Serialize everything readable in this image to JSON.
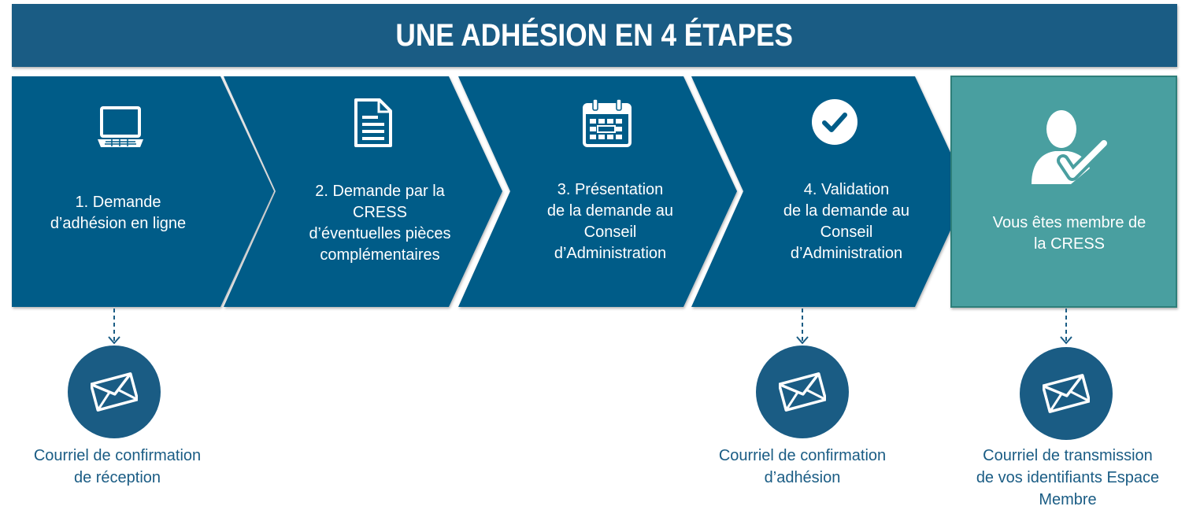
{
  "title": "UNE ADHÉSION EN 4 ÉTAPES",
  "colors": {
    "step_fill": "#005c88",
    "member_fill": "#4a9fa0",
    "text_dark": "#1a5c84",
    "white": "#ffffff"
  },
  "steps": [
    {
      "icon": "laptop-icon",
      "lines": [
        "1. Demande",
        "d’adhésion en ligne"
      ]
    },
    {
      "icon": "document-icon",
      "lines": [
        "2. Demande par la",
        "CRESS",
        "d’éventuelles pièces",
        "complémentaires"
      ]
    },
    {
      "icon": "calendar-icon",
      "lines": [
        "3. Présentation",
        "de la demande au",
        "Conseil",
        "d’Administration"
      ]
    },
    {
      "icon": "check-circle-icon",
      "lines": [
        "4. Validation",
        "de la demande au",
        "Conseil",
        "d’Administration"
      ]
    }
  ],
  "final_step": {
    "icon": "user-check-icon",
    "lines": [
      "Vous êtes membre de",
      "la CRESS"
    ]
  },
  "emails": [
    {
      "icon": "envelope-icon",
      "lines": [
        "Courriel de confirmation",
        "de réception"
      ]
    },
    {
      "icon": "envelope-icon",
      "lines": [
        "Courriel de confirmation",
        "d’adhésion"
      ]
    },
    {
      "icon": "envelope-icon",
      "lines": [
        "Courriel de transmission",
        "de vos identifiants Espace",
        "Membre"
      ]
    }
  ]
}
